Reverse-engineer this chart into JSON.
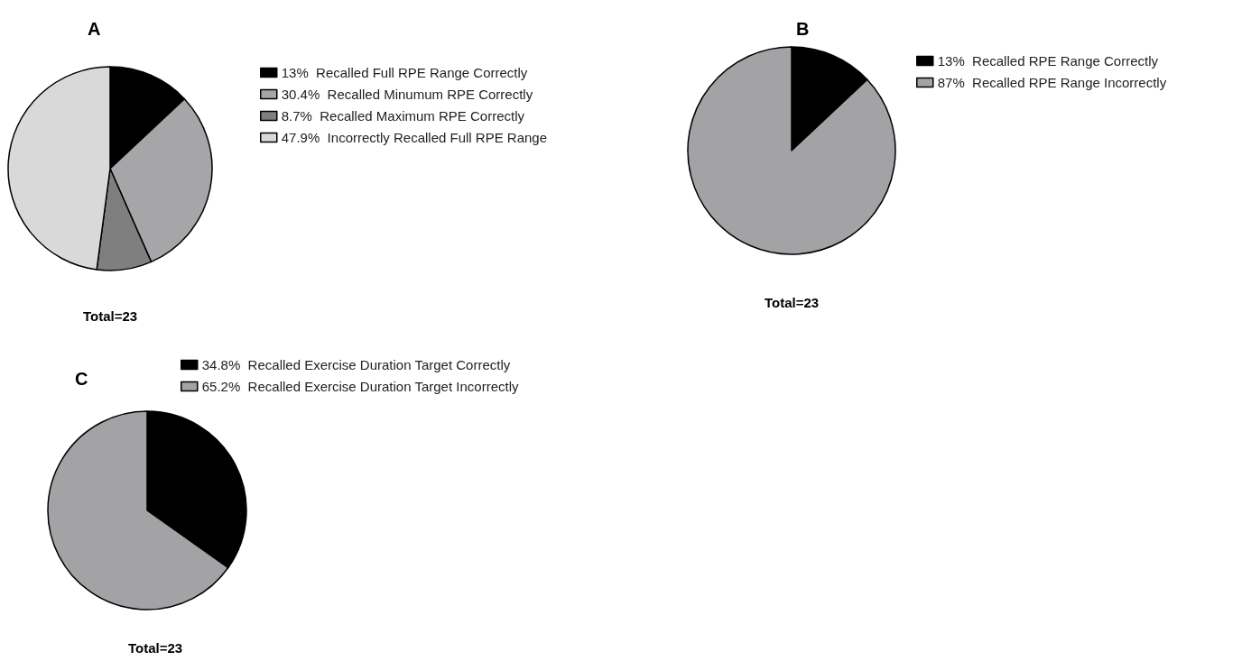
{
  "chart_data": [
    {
      "type": "pie",
      "title": "A",
      "categories": [
        "13%  Recalled Full RPE Range Correctly",
        "30.4%  Recalled Minumum RPE Correctly",
        "8.7%  Recalled Maximum RPE Correctly",
        "47.9%  Incorrectly Recalled Full RPE Range"
      ],
      "values": [
        13,
        30.4,
        8.7,
        47.9
      ],
      "colors": [
        "#000000",
        "#a6a6a8",
        "#7f7f7f",
        "#d9d9d9"
      ],
      "legend": "right",
      "annotations": [
        "Total=23"
      ]
    },
    {
      "type": "pie",
      "title": "B",
      "categories": [
        "13%  Recalled RPE Range Correctly",
        "87%  Recalled RPE Range Incorrectly"
      ],
      "values": [
        13,
        87
      ],
      "colors": [
        "#000000",
        "#a3a3a6"
      ],
      "legend": "top right",
      "annotations": [
        "Total=23"
      ]
    },
    {
      "type": "pie",
      "title": "C",
      "categories": [
        "34.8%  Recalled Exercise Duration Target Correctly",
        "65.2%  Recalled Exercise Duration Target Incorrectly"
      ],
      "values": [
        34.8,
        65.2
      ],
      "colors": [
        "#000000",
        "#a3a3a6"
      ],
      "legend": "top",
      "annotations": [
        "Total=23"
      ]
    }
  ]
}
